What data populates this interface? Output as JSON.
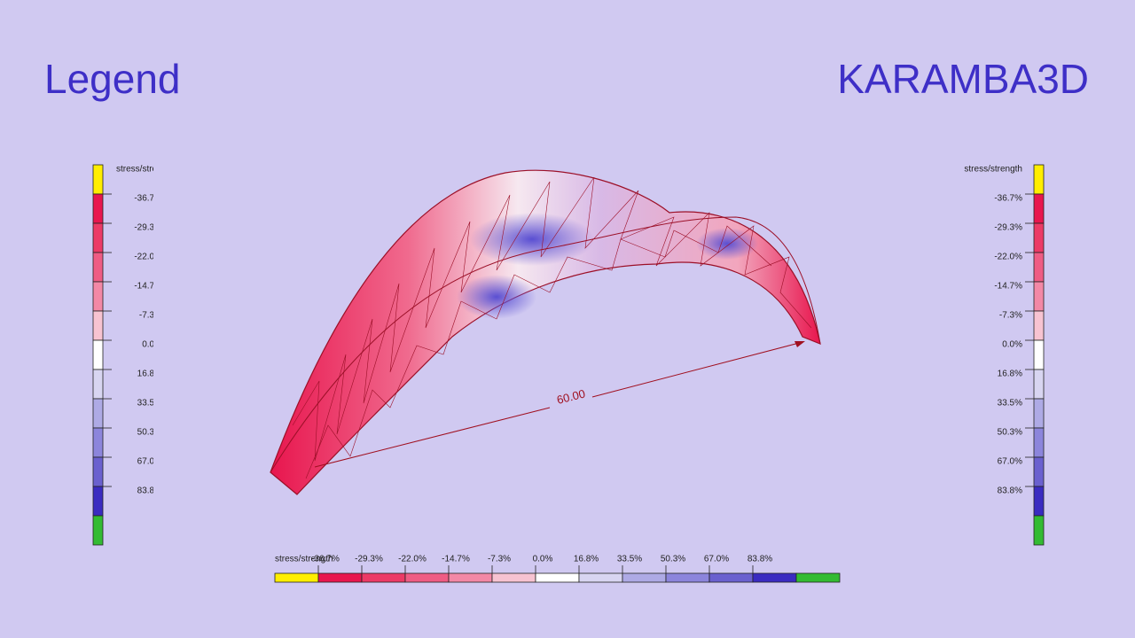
{
  "header": {
    "left_title": "Legend",
    "brand": "KARAMBA3D"
  },
  "legend": {
    "title": "stress/strength",
    "labels": [
      "-36.7%",
      "-29.3%",
      "-22.0%",
      "-14.7%",
      "-7.3%",
      "0.0%",
      "16.8%",
      "33.5%",
      "50.3%",
      "67.0%",
      "83.8%"
    ],
    "colors": [
      "#ffee00",
      "#e8164e",
      "#ec3a66",
      "#ef5c84",
      "#f388a6",
      "#f7c3d1",
      "#ffffff",
      "#d8d5f1",
      "#aeaae5",
      "#8c85dc",
      "#6a60cf",
      "#3a2bc1",
      "#33bb33"
    ]
  },
  "model": {
    "dimension": "60.00"
  }
}
